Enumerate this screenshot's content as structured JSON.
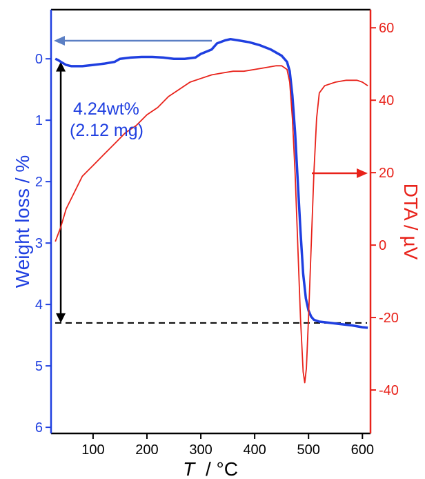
{
  "chart_data": {
    "type": "line",
    "xlabel_var": "T",
    "xlabel_unit": "/ °C",
    "ylabel_left": "Weight loss / %",
    "ylabel_right": "DTA / µV",
    "xlim": [
      22,
      615
    ],
    "ylim_left": [
      6.1,
      -0.8
    ],
    "ylim_right": [
      -52,
      65
    ],
    "left_ticks": [
      0,
      1,
      2,
      3,
      4,
      5,
      6
    ],
    "right_ticks": [
      60,
      40,
      20,
      0,
      -20,
      -40
    ],
    "x_ticks": [
      100,
      200,
      300,
      400,
      500,
      600
    ],
    "grid": false,
    "annotation": {
      "line1": "4.24wt%",
      "line2": "(2.12 mg)",
      "arrow_x": 40,
      "from_weight": 0.05,
      "to_weight": 4.3,
      "dashed_weight": 4.3
    },
    "colors": {
      "weight": "#1f3fe0",
      "dta": "#e8221a",
      "left_axis": "#1f3fe0",
      "right_axis": "#e8221a",
      "left_arrow": "#5b7fc4"
    },
    "series": [
      {
        "axis": "left",
        "points": [
          [
            30,
            0.0
          ],
          [
            35,
            0.02
          ],
          [
            40,
            0.05
          ],
          [
            50,
            0.1
          ],
          [
            60,
            0.12
          ],
          [
            80,
            0.12
          ],
          [
            100,
            0.1
          ],
          [
            120,
            0.08
          ],
          [
            140,
            0.05
          ],
          [
            150,
            0.0
          ],
          [
            170,
            -0.02
          ],
          [
            190,
            -0.03
          ],
          [
            210,
            -0.03
          ],
          [
            230,
            -0.02
          ],
          [
            250,
            0.0
          ],
          [
            270,
            0.0
          ],
          [
            290,
            -0.02
          ],
          [
            300,
            -0.08
          ],
          [
            320,
            -0.15
          ],
          [
            330,
            -0.25
          ],
          [
            345,
            -0.3
          ],
          [
            355,
            -0.32
          ],
          [
            370,
            -0.3
          ],
          [
            390,
            -0.27
          ],
          [
            410,
            -0.22
          ],
          [
            430,
            -0.15
          ],
          [
            450,
            -0.05
          ],
          [
            460,
            0.05
          ],
          [
            465,
            0.2
          ],
          [
            470,
            0.6
          ],
          [
            475,
            1.2
          ],
          [
            480,
            2.0
          ],
          [
            485,
            2.8
          ],
          [
            490,
            3.5
          ],
          [
            495,
            3.9
          ],
          [
            500,
            4.1
          ],
          [
            505,
            4.2
          ],
          [
            510,
            4.25
          ],
          [
            520,
            4.28
          ],
          [
            540,
            4.3
          ],
          [
            560,
            4.32
          ],
          [
            580,
            4.34
          ],
          [
            600,
            4.37
          ],
          [
            610,
            4.38
          ]
        ]
      },
      {
        "axis": "right",
        "points": [
          [
            30,
            1
          ],
          [
            40,
            5
          ],
          [
            50,
            10
          ],
          [
            60,
            13
          ],
          [
            70,
            16
          ],
          [
            80,
            19
          ],
          [
            100,
            22
          ],
          [
            120,
            25
          ],
          [
            140,
            28
          ],
          [
            160,
            31
          ],
          [
            180,
            33
          ],
          [
            200,
            36
          ],
          [
            220,
            38
          ],
          [
            240,
            41
          ],
          [
            260,
            43
          ],
          [
            280,
            45
          ],
          [
            300,
            46
          ],
          [
            320,
            47
          ],
          [
            340,
            47.5
          ],
          [
            360,
            48
          ],
          [
            380,
            48
          ],
          [
            400,
            48.5
          ],
          [
            420,
            49
          ],
          [
            440,
            49.5
          ],
          [
            450,
            49.5
          ],
          [
            460,
            48.5
          ],
          [
            465,
            45
          ],
          [
            470,
            35
          ],
          [
            475,
            20
          ],
          [
            480,
            0
          ],
          [
            485,
            -20
          ],
          [
            490,
            -35
          ],
          [
            493,
            -38
          ],
          [
            496,
            -34
          ],
          [
            500,
            -20
          ],
          [
            505,
            0
          ],
          [
            510,
            20
          ],
          [
            515,
            35
          ],
          [
            520,
            42
          ],
          [
            530,
            44
          ],
          [
            550,
            45
          ],
          [
            570,
            45.5
          ],
          [
            590,
            45.5
          ],
          [
            600,
            45
          ],
          [
            610,
            44
          ]
        ]
      }
    ]
  }
}
